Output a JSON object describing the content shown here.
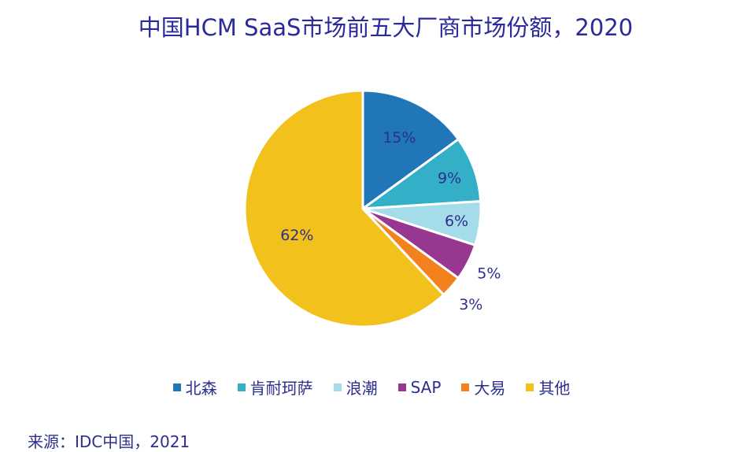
{
  "chart_data": {
    "type": "pie",
    "title": "中国HCM SaaS市场前五大厂商市场份额，2020",
    "slices": [
      {
        "label": "北森",
        "value": 15,
        "data_label": "15%",
        "color": "#2176b8"
      },
      {
        "label": "肯耐珂萨",
        "value": 9,
        "data_label": "9%",
        "color": "#33afc8"
      },
      {
        "label": "浪潮",
        "value": 6,
        "data_label": "6%",
        "color": "#a4dde9"
      },
      {
        "label": "SAP",
        "value": 5,
        "data_label": "5%",
        "color": "#98378f"
      },
      {
        "label": "大易",
        "value": 3,
        "data_label": "3%",
        "color": "#f3811d"
      },
      {
        "label": "其他",
        "value": 62,
        "data_label": "62%",
        "color": "#f2c11c"
      }
    ],
    "start": "top",
    "direction": "clockwise",
    "legend_position": "bottom"
  },
  "source": "来源：IDC中国，2021"
}
